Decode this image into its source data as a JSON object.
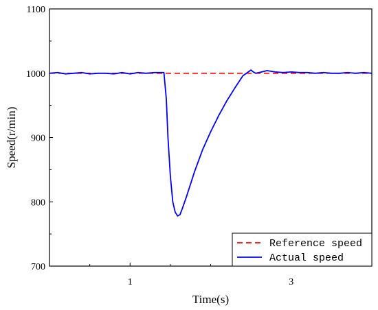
{
  "chart_data": {
    "type": "line",
    "title": "",
    "xlabel": "Time(s)",
    "ylabel": "Speed(r/min)",
    "xlim": [
      0,
      4
    ],
    "ylim": [
      700,
      1100
    ],
    "x_ticks": [
      1,
      3
    ],
    "x_minor_ticks": [
      0.5,
      1.5,
      2,
      2.5,
      3.5
    ],
    "y_ticks": [
      700,
      800,
      900,
      1000,
      1100
    ],
    "grid": false,
    "legend_position": "bottom-right",
    "series": [
      {
        "name": "Reference speed",
        "color": "#ff0000",
        "style": "dashed",
        "x": [
          0,
          4
        ],
        "y": [
          1000,
          1000
        ]
      },
      {
        "name": "Actual speed",
        "color": "#0000ff",
        "style": "solid",
        "x": [
          0,
          0.1,
          0.2,
          0.3,
          0.4,
          0.5,
          0.6,
          0.7,
          0.8,
          0.9,
          1.0,
          1.1,
          1.2,
          1.3,
          1.42,
          1.45,
          1.47,
          1.5,
          1.53,
          1.56,
          1.59,
          1.62,
          1.65,
          1.7,
          1.8,
          1.9,
          2.0,
          2.1,
          2.2,
          2.3,
          2.4,
          2.5,
          2.53,
          2.56,
          2.6,
          2.7,
          2.8,
          2.9,
          3.0,
          3.1,
          3.2,
          3.3,
          3.4,
          3.5,
          3.6,
          3.7,
          3.8,
          3.9,
          4.0
        ],
        "y": [
          1000,
          1001,
          999,
          1000,
          1001,
          999,
          1000,
          1000,
          999,
          1001,
          999,
          1001,
          1000,
          1001,
          1001,
          960,
          900,
          840,
          800,
          784,
          778,
          780,
          790,
          808,
          847,
          881,
          909,
          934,
          957,
          977,
          996,
          1005,
          1002,
          1000,
          1001,
          1004,
          1002,
          1001,
          1002,
          1001,
          1001,
          1000,
          1001,
          1000,
          1000,
          1001,
          1000,
          1001,
          1000
        ]
      }
    ]
  }
}
